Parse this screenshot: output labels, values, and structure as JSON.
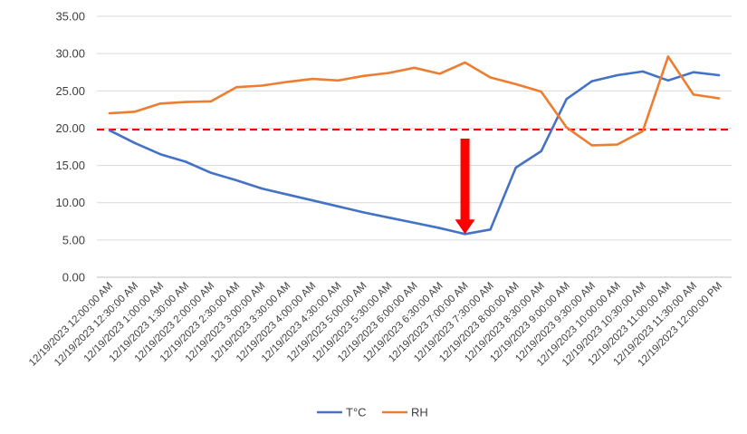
{
  "chart_data": {
    "type": "line",
    "categories": [
      "12/19/2023 12:00:00 AM",
      "12/19/2023 12:30:00 AM",
      "12/19/2023 1:00:00 AM",
      "12/19/2023 1:30:00 AM",
      "12/19/2023 2:00:00 AM",
      "12/19/2023 2:30:00 AM",
      "12/19/2023 3:00:00 AM",
      "12/19/2023 3:30:00 AM",
      "12/19/2023 4:00:00 AM",
      "12/19/2023 4:30:00 AM",
      "12/19/2023 5:00:00 AM",
      "12/19/2023 5:30:00 AM",
      "12/19/2023 6:00:00 AM",
      "12/19/2023 6:30:00 AM",
      "12/19/2023 7:00:00 AM",
      "12/19/2023 7:30:00 AM",
      "12/19/2023 8:00:00 AM",
      "12/19/2023 8:30:00 AM",
      "12/19/2023 9:00:00 AM",
      "12/19/2023 9:30:00 AM",
      "12/19/2023 10:00:00 AM",
      "12/19/2023 10:30:00 AM",
      "12/19/2023 11:00:00 AM",
      "12/19/2023 11:30:00 AM",
      "12/19/2023 12:00:00 PM"
    ],
    "series": [
      {
        "name": "T°C",
        "color": "#4472C4",
        "values": [
          19.7,
          18.0,
          16.5,
          15.5,
          14.0,
          13.0,
          11.9,
          11.1,
          10.3,
          9.5,
          8.7,
          8.0,
          7.3,
          6.6,
          5.8,
          6.4,
          14.7,
          16.9,
          23.9,
          26.3,
          27.1,
          27.6,
          26.4,
          27.5,
          27.1
        ]
      },
      {
        "name": "RH",
        "color": "#ED7D31",
        "values": [
          22.0,
          22.2,
          23.3,
          23.5,
          23.6,
          25.5,
          25.7,
          26.2,
          26.6,
          26.4,
          27.0,
          27.4,
          28.1,
          27.3,
          28.8,
          26.8,
          25.9,
          24.9,
          20.1,
          17.7,
          17.8,
          19.6,
          29.6,
          24.5,
          24.0
        ]
      }
    ],
    "ylim": [
      0,
      35
    ],
    "yticks": [
      "0.00",
      "5.00",
      "10.00",
      "15.00",
      "20.00",
      "25.00",
      "30.00",
      "35.00"
    ],
    "grid": true,
    "legend": "bottom",
    "reference_line": {
      "y": 19.8,
      "color": "#FF0000",
      "style": "dashed"
    },
    "annotation": {
      "type": "arrow",
      "at_category": "12/19/2023 7:00:00 AM",
      "from_y": 18.6,
      "to_y": 5.8,
      "color": "#FF0000"
    },
    "title": "",
    "xlabel": "",
    "ylabel": ""
  }
}
